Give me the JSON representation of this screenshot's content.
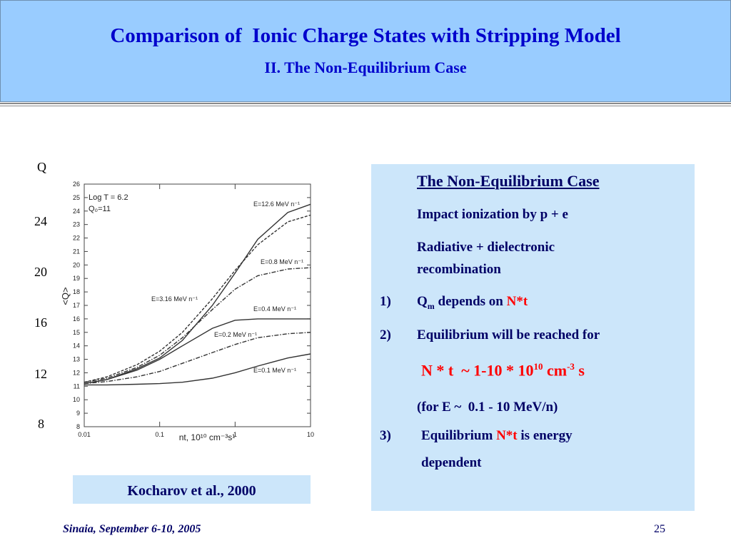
{
  "header": {
    "title": "Comparison of  Ionic Charge States with Stripping Model",
    "subtitle": "II. The Non-Equilibrium Case"
  },
  "outer_axis": {
    "title": "Q",
    "labels": [
      "24",
      "20",
      "16",
      "12",
      "8"
    ]
  },
  "chart_data": {
    "type": "line",
    "xlog": true,
    "ylabel": "<Q>",
    "xlabel": "nt, 10¹⁰ cm⁻³s¹",
    "annotations": [
      "Log T = 6.2",
      "Q₀=11"
    ],
    "x": [
      0.01,
      0.02,
      0.05,
      0.1,
      0.2,
      0.5,
      1,
      2,
      5,
      10
    ],
    "xlim": [
      0.01,
      10
    ],
    "xticks": [
      0.01,
      0.1,
      1,
      10
    ],
    "ylim": [
      8,
      26
    ],
    "yticks": [
      8,
      9,
      10,
      11,
      12,
      13,
      14,
      15,
      16,
      17,
      18,
      19,
      20,
      21,
      22,
      23,
      24,
      25,
      26
    ],
    "series": [
      {
        "name": "E=12.6 MeV n⁻¹",
        "color": "#333333",
        "dash": "solid",
        "values": [
          11.2,
          11.5,
          12.3,
          13.1,
          14.4,
          17.0,
          19.4,
          21.9,
          23.9,
          24.5
        ]
      },
      {
        "name": "E=0.8 MeV n⁻¹",
        "color": "#333333",
        "dash": "dashdot",
        "values": [
          11.3,
          11.6,
          12.4,
          13.3,
          14.6,
          16.7,
          18.2,
          19.2,
          19.7,
          19.8
        ]
      },
      {
        "name": "E=3.16 MeV n⁻¹",
        "color": "#333333",
        "dash": "dashed",
        "values": [
          11.3,
          11.7,
          12.6,
          13.6,
          15.0,
          17.5,
          19.6,
          21.5,
          23.2,
          23.7
        ]
      },
      {
        "name": "E=0.4 MeV n⁻¹",
        "color": "#333333",
        "dash": "solid",
        "values": [
          11.2,
          11.5,
          12.2,
          13.0,
          14.0,
          15.3,
          15.9,
          16.0,
          16.0,
          16.0
        ]
      },
      {
        "name": "E=0.2 MeV n⁻¹",
        "color": "#333333",
        "dash": "dashdot",
        "values": [
          11.2,
          11.35,
          11.7,
          12.1,
          12.7,
          13.5,
          14.1,
          14.6,
          14.9,
          15.0
        ]
      },
      {
        "name": "E=0.1 MeV n⁻¹",
        "color": "#333333",
        "dash": "solid",
        "values": [
          11.1,
          11.1,
          11.15,
          11.2,
          11.3,
          11.6,
          12.0,
          12.5,
          13.1,
          13.4
        ]
      }
    ]
  },
  "caption": "Kocharov et al., 2000",
  "panel": {
    "heading": "The Non-Equilibrium Case",
    "lines": [
      "Impact ionization by p + e",
      "Radiative + dielectronic",
      "recombination"
    ],
    "item1": {
      "num": "1)",
      "q": "Q",
      "sub": "m",
      "text": " depends on ",
      "highlight": "N*t"
    },
    "item2": {
      "num": "2)",
      "text": "Equilibrium will be reached for"
    },
    "formula": [
      "N * t  ~ 1-10 * 10",
      "10",
      " cm",
      "-3",
      " s"
    ],
    "note": "(for E ~  0.1 - 10 MeV/n)",
    "item3": {
      "num": "3)",
      "text": "Equilibrium ",
      "highlight": "N*t",
      "rest": " is energy",
      "rest2": "dependent"
    }
  },
  "footer": {
    "left": "Sinaia, September 6-10, 2005",
    "right": "25"
  }
}
